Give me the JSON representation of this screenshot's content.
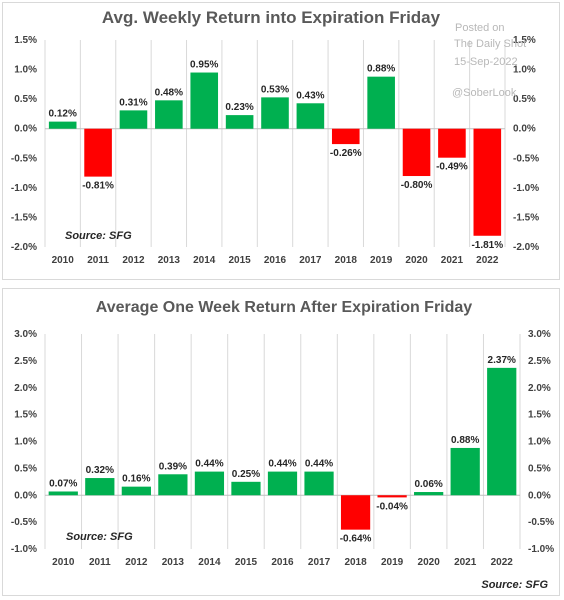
{
  "watermark": {
    "line1": "Posted on",
    "line2": "The Daily Shot",
    "line3": "15-Sep-2022",
    "handle": "@SoberLook"
  },
  "chart_data": [
    {
      "type": "bar",
      "title": "Avg. Weekly Return into Expiration Friday",
      "source": "Source: SFG",
      "categories": [
        "2010",
        "2011",
        "2012",
        "2013",
        "2014",
        "2015",
        "2016",
        "2017",
        "2018",
        "2019",
        "2020",
        "2021",
        "2022"
      ],
      "values": [
        0.12,
        -0.81,
        0.31,
        0.48,
        0.95,
        0.23,
        0.53,
        0.43,
        -0.26,
        0.88,
        -0.8,
        -0.49,
        -1.81
      ],
      "data_labels": [
        "0.12%",
        "-0.81%",
        "0.31%",
        "0.48%",
        "0.95%",
        "0.23%",
        "0.53%",
        "0.43%",
        "-0.26%",
        "0.88%",
        "-0.80%",
        "-0.49%",
        "-1.81%"
      ],
      "ylim": [
        -2.0,
        1.5
      ],
      "yticks": [
        1.5,
        1.0,
        0.5,
        0.0,
        -0.5,
        -1.0,
        -1.5,
        -2.0
      ],
      "ytick_labels": [
        "1.5%",
        "1.0%",
        "0.5%",
        "0.0%",
        "-0.5%",
        "-1.0%",
        "-1.5%",
        "-2.0%"
      ],
      "secondary_axis": true,
      "grid": "vertical",
      "colors": {
        "positive": "#00b050",
        "negative": "#ff0000"
      }
    },
    {
      "type": "bar",
      "title": "Average One Week Return After Expiration Friday",
      "source": "Source: SFG",
      "source_bottom": "Source: SFG",
      "categories": [
        "2010",
        "2011",
        "2012",
        "2013",
        "2014",
        "2015",
        "2016",
        "2017",
        "2018",
        "2019",
        "2020",
        "2021",
        "2022"
      ],
      "values": [
        0.07,
        0.32,
        0.16,
        0.39,
        0.44,
        0.25,
        0.44,
        0.44,
        -0.64,
        -0.04,
        0.06,
        0.88,
        2.37
      ],
      "data_labels": [
        "0.07%",
        "0.32%",
        "0.16%",
        "0.39%",
        "0.44%",
        "0.25%",
        "0.44%",
        "0.44%",
        "-0.64%",
        "-0.04%",
        "0.06%",
        "0.88%",
        "2.37%"
      ],
      "ylim": [
        -1.0,
        3.0
      ],
      "yticks": [
        3.0,
        2.5,
        2.0,
        1.5,
        1.0,
        0.5,
        0.0,
        -0.5,
        -1.0
      ],
      "ytick_labels": [
        "3.0%",
        "2.5%",
        "2.0%",
        "1.5%",
        "1.0%",
        "0.5%",
        "0.0%",
        "-0.5%",
        "-1.0%"
      ],
      "secondary_axis": true,
      "grid": "vertical",
      "colors": {
        "positive": "#00b050",
        "negative": "#ff0000"
      }
    }
  ]
}
